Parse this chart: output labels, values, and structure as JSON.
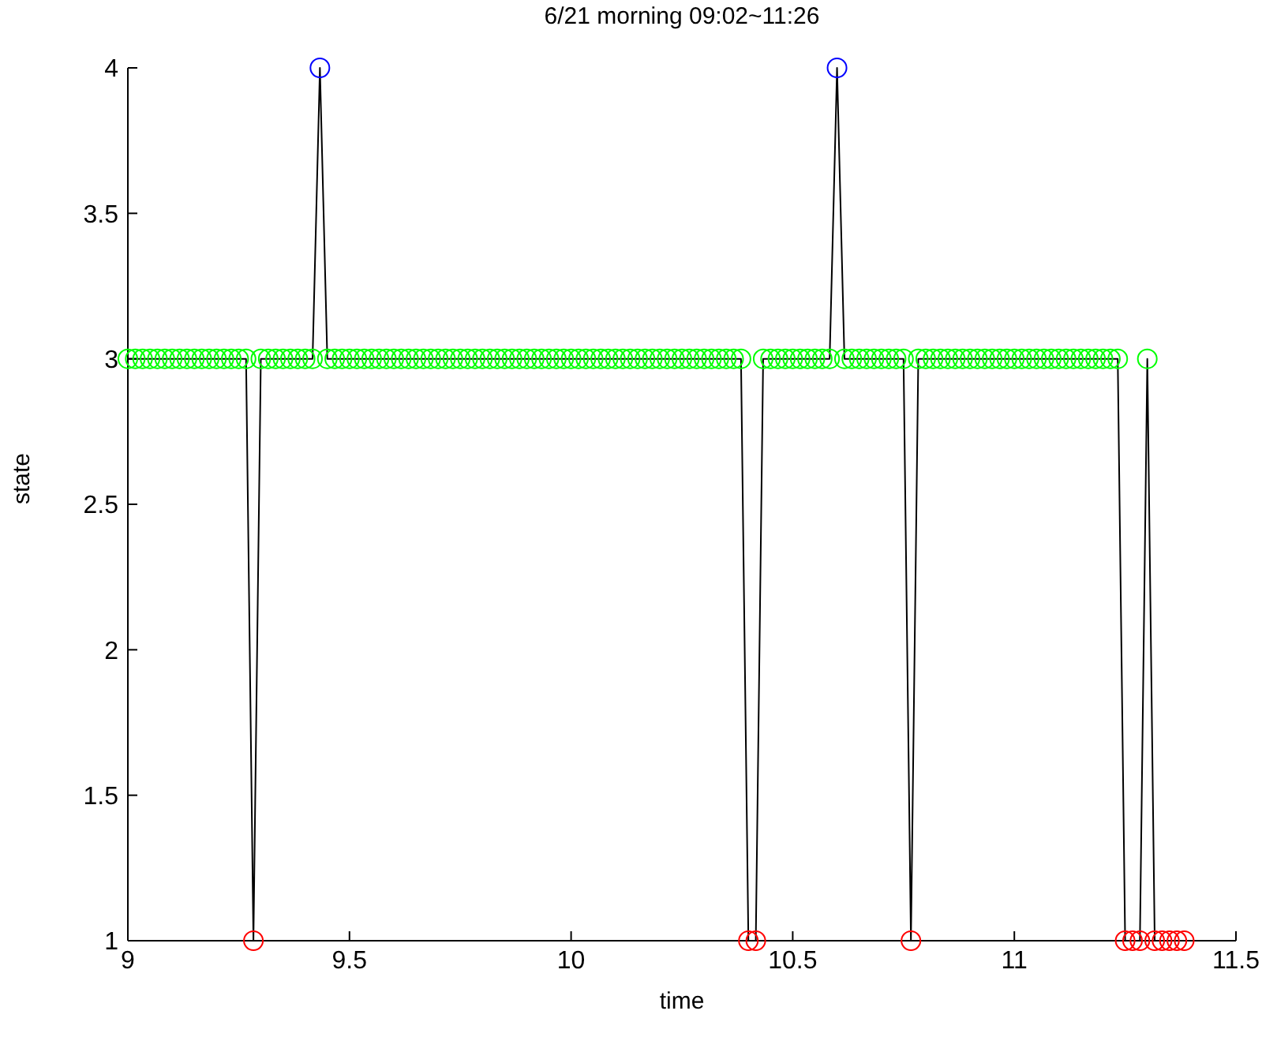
{
  "chart_data": {
    "type": "line",
    "title": "6/21 morning 09:02~11:26",
    "xlabel": "time",
    "ylabel": "state",
    "xlim": [
      9,
      11.5
    ],
    "xticks": [
      9,
      9.5,
      10,
      10.5,
      11,
      11.5
    ],
    "ylim": [
      1,
      4
    ],
    "yticks": [
      1,
      1.5,
      2,
      2.5,
      3,
      3.5,
      4
    ],
    "grid": false,
    "marker": "circle",
    "line_style": "solid",
    "x": [
      9,
      9.0167,
      9.0333,
      9.05,
      9.0667,
      9.0833,
      9.1,
      9.1167,
      9.1333,
      9.15,
      9.1667,
      9.1833,
      9.2,
      9.2167,
      9.2333,
      9.25,
      9.2667,
      9.2833,
      9.3,
      9.3167,
      9.3333,
      9.35,
      9.3667,
      9.3833,
      9.4,
      9.4167,
      9.4333,
      9.45,
      9.4667,
      9.4833,
      9.5,
      9.5167,
      9.5333,
      9.55,
      9.5667,
      9.5833,
      9.6,
      9.6167,
      9.6333,
      9.65,
      9.6667,
      9.6833,
      9.7,
      9.7167,
      9.7333,
      9.75,
      9.7667,
      9.7833,
      9.8,
      9.8167,
      9.8333,
      9.85,
      9.8667,
      9.8833,
      9.9,
      9.9167,
      9.9333,
      9.95,
      9.9667,
      9.9833,
      10,
      10.0167,
      10.0333,
      10.05,
      10.0667,
      10.0833,
      10.1,
      10.1167,
      10.1333,
      10.15,
      10.1667,
      10.1833,
      10.2,
      10.2167,
      10.2333,
      10.25,
      10.2667,
      10.2833,
      10.3,
      10.3167,
      10.3333,
      10.35,
      10.3667,
      10.3833,
      10.4,
      10.4167,
      10.4333,
      10.45,
      10.4667,
      10.4833,
      10.5,
      10.5167,
      10.5333,
      10.55,
      10.5667,
      10.5833,
      10.6,
      10.6167,
      10.6333,
      10.65,
      10.6667,
      10.6833,
      10.7,
      10.7167,
      10.7333,
      10.75,
      10.7667,
      10.7833,
      10.8,
      10.8167,
      10.8333,
      10.85,
      10.8667,
      10.8833,
      10.9,
      10.9167,
      10.9333,
      10.95,
      10.9667,
      10.9833,
      11,
      11.0167,
      11.0333,
      11.05,
      11.0667,
      11.0833,
      11.1,
      11.1167,
      11.1333,
      11.15,
      11.1667,
      11.1833,
      11.2,
      11.2167,
      11.2333,
      11.25,
      11.2667,
      11.2833,
      11.3,
      11.3167,
      11.3333,
      11.35,
      11.3667,
      11.3833
    ],
    "series": [
      {
        "color": "#000000",
        "values": [
          3,
          3,
          3,
          3,
          3,
          3,
          3,
          3,
          3,
          3,
          3,
          3,
          3,
          3,
          3,
          3,
          3,
          1,
          3,
          3,
          3,
          3,
          3,
          3,
          3,
          3,
          4,
          3,
          3,
          3,
          3,
          3,
          3,
          3,
          3,
          3,
          3,
          3,
          3,
          3,
          3,
          3,
          3,
          3,
          3,
          3,
          3,
          3,
          3,
          3,
          3,
          3,
          3,
          3,
          3,
          3,
          3,
          3,
          3,
          3,
          3,
          3,
          3,
          3,
          3,
          3,
          3,
          3,
          3,
          3,
          3,
          3,
          3,
          3,
          3,
          3,
          3,
          3,
          3,
          3,
          3,
          3,
          3,
          3,
          1,
          1,
          3,
          3,
          3,
          3,
          3,
          3,
          3,
          3,
          3,
          3,
          4,
          3,
          3,
          3,
          3,
          3,
          3,
          3,
          3,
          3,
          1,
          3,
          3,
          3,
          3,
          3,
          3,
          3,
          3,
          3,
          3,
          3,
          3,
          3,
          3,
          3,
          3,
          3,
          3,
          3,
          3,
          3,
          3,
          3,
          3,
          3,
          3,
          3,
          3,
          1,
          1,
          1,
          3,
          1,
          1,
          1,
          1,
          1
        ],
        "colors": [
          "#00ff00",
          "#00ff00",
          "#00ff00",
          "#00ff00",
          "#00ff00",
          "#00ff00",
          "#00ff00",
          "#00ff00",
          "#00ff00",
          "#00ff00",
          "#00ff00",
          "#00ff00",
          "#00ff00",
          "#00ff00",
          "#00ff00",
          "#00ff00",
          "#00ff00",
          "#ff0000",
          "#00ff00",
          "#00ff00",
          "#00ff00",
          "#00ff00",
          "#00ff00",
          "#00ff00",
          "#00ff00",
          "#00ff00",
          "#0000ff",
          "#00ff00",
          "#00ff00",
          "#00ff00",
          "#00ff00",
          "#00ff00",
          "#00ff00",
          "#00ff00",
          "#00ff00",
          "#00ff00",
          "#00ff00",
          "#00ff00",
          "#00ff00",
          "#00ff00",
          "#00ff00",
          "#00ff00",
          "#00ff00",
          "#00ff00",
          "#00ff00",
          "#00ff00",
          "#00ff00",
          "#00ff00",
          "#00ff00",
          "#00ff00",
          "#00ff00",
          "#00ff00",
          "#00ff00",
          "#00ff00",
          "#00ff00",
          "#00ff00",
          "#00ff00",
          "#00ff00",
          "#00ff00",
          "#00ff00",
          "#00ff00",
          "#00ff00",
          "#00ff00",
          "#00ff00",
          "#00ff00",
          "#00ff00",
          "#00ff00",
          "#00ff00",
          "#00ff00",
          "#00ff00",
          "#00ff00",
          "#00ff00",
          "#00ff00",
          "#00ff00",
          "#00ff00",
          "#00ff00",
          "#00ff00",
          "#00ff00",
          "#00ff00",
          "#00ff00",
          "#00ff00",
          "#00ff00",
          "#00ff00",
          "#00ff00",
          "#ff0000",
          "#ff0000",
          "#00ff00",
          "#00ff00",
          "#00ff00",
          "#00ff00",
          "#00ff00",
          "#00ff00",
          "#00ff00",
          "#00ff00",
          "#00ff00",
          "#00ff00",
          "#0000ff",
          "#00ff00",
          "#00ff00",
          "#00ff00",
          "#00ff00",
          "#00ff00",
          "#00ff00",
          "#00ff00",
          "#00ff00",
          "#00ff00",
          "#ff0000",
          "#00ff00",
          "#00ff00",
          "#00ff00",
          "#00ff00",
          "#00ff00",
          "#00ff00",
          "#00ff00",
          "#00ff00",
          "#00ff00",
          "#00ff00",
          "#00ff00",
          "#00ff00",
          "#00ff00",
          "#00ff00",
          "#00ff00",
          "#00ff00",
          "#00ff00",
          "#00ff00",
          "#00ff00",
          "#00ff00",
          "#00ff00",
          "#00ff00",
          "#00ff00",
          "#00ff00",
          "#00ff00",
          "#00ff00",
          "#00ff00",
          "#00ff00",
          "#ff0000",
          "#ff0000",
          "#ff0000",
          "#00ff00",
          "#ff0000",
          "#ff0000",
          "#ff0000",
          "#ff0000",
          "#ff0000"
        ]
      }
    ]
  }
}
